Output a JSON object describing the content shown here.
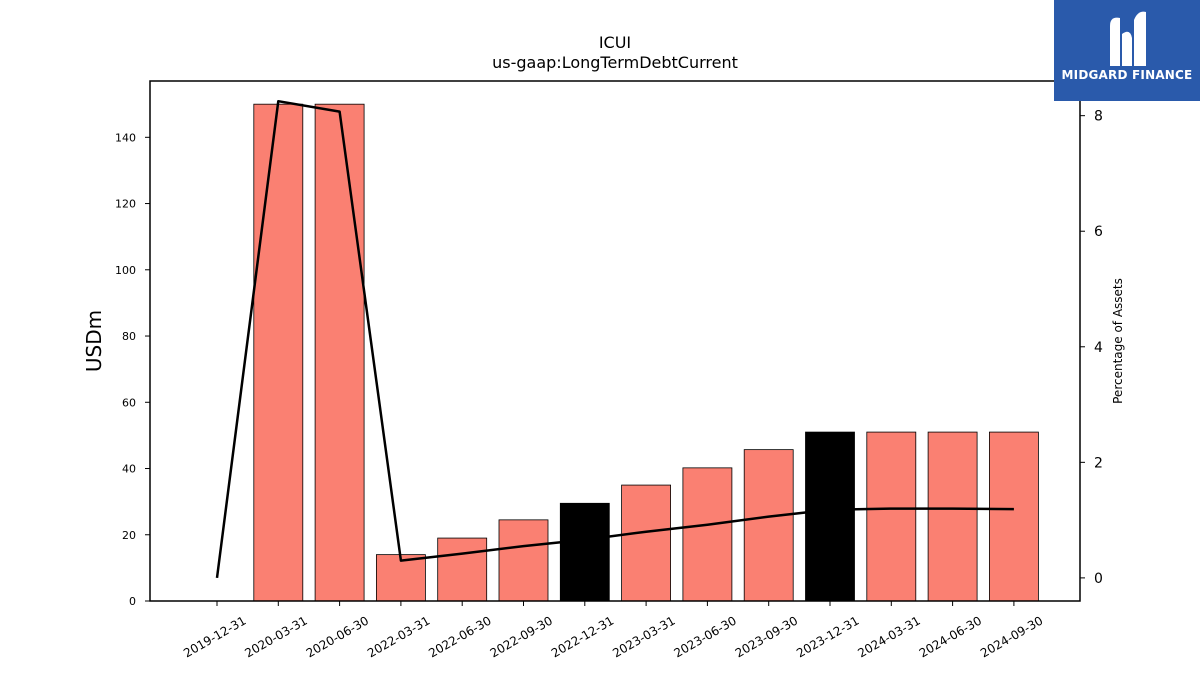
{
  "brand": {
    "name": "MIDGARD FINANCE",
    "background": "#2a5aab",
    "icon": "midgard-finance-logo-icon"
  },
  "chart_data": {
    "type": "bar",
    "title": "ICUI",
    "subtitle": "us-gaap:LongTermDebtCurrent",
    "ylabel": "USDm",
    "y2label": "Percentage of Assets",
    "categories": [
      "2019-12-31",
      "2020-03-31",
      "2020-06-30",
      "2022-03-31",
      "2022-06-30",
      "2022-09-30",
      "2022-12-31",
      "2023-03-31",
      "2023-06-30",
      "2023-09-30",
      "2023-12-31",
      "2024-03-31",
      "2024-06-30",
      "2024-09-30"
    ],
    "ylim": [
      0,
      157
    ],
    "yticks": [
      0,
      20,
      40,
      60,
      80,
      100,
      120,
      140
    ],
    "y2lim": [
      -0.4,
      8.6
    ],
    "y2ticks": [
      0,
      2,
      4,
      6,
      8
    ],
    "series": [
      {
        "kind": "bar",
        "values": [
          0,
          150,
          150,
          14,
          19,
          24.5,
          29.5,
          35,
          40.2,
          45.7,
          51,
          51,
          51,
          51
        ],
        "colors": [
          "#fa8072",
          "#fa8072",
          "#fa8072",
          "#fa8072",
          "#fa8072",
          "#fa8072",
          "#000000",
          "#fa8072",
          "#fa8072",
          "#fa8072",
          "#000000",
          "#fa8072",
          "#fa8072",
          "#fa8072"
        ]
      },
      {
        "kind": "line",
        "axis": "right",
        "color": "#000000",
        "values": [
          0,
          8.25,
          8.07,
          0.3,
          0.42,
          0.55,
          0.66,
          0.8,
          0.92,
          1.06,
          1.18,
          1.2,
          1.2,
          1.19
        ]
      }
    ],
    "grid": false,
    "legend": "none"
  }
}
